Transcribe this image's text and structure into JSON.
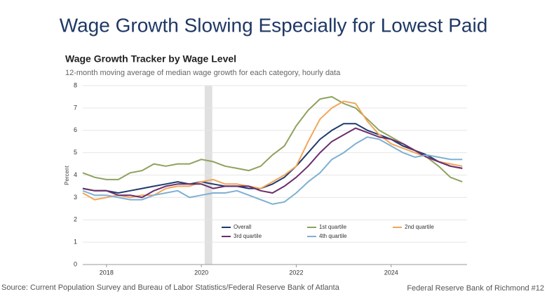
{
  "header": {
    "title": "Wage Growth Slowing Especially for Lowest Paid"
  },
  "chart_data": {
    "type": "line",
    "title": "Wage Growth Tracker by Wage Level",
    "subtitle": "12-month moving average of median wage growth for each category, hourly data",
    "y_label": "Percent",
    "x": [
      2017.5,
      2017.75,
      2018,
      2018.25,
      2018.5,
      2018.75,
      2019,
      2019.25,
      2019.5,
      2019.75,
      2020,
      2020.25,
      2020.5,
      2020.75,
      2021,
      2021.25,
      2021.5,
      2021.75,
      2022,
      2022.25,
      2022.5,
      2022.75,
      2023,
      2023.25,
      2023.5,
      2023.75,
      2024,
      2024.25,
      2024.5,
      2024.75,
      2025,
      2025.25,
      2025.5
    ],
    "series": [
      {
        "name": "Overall",
        "color": "#1f3b6e",
        "values": [
          3.4,
          3.3,
          3.3,
          3.2,
          3.3,
          3.4,
          3.5,
          3.6,
          3.7,
          3.6,
          3.7,
          3.6,
          3.5,
          3.5,
          3.4,
          3.4,
          3.6,
          3.9,
          4.4,
          5.0,
          5.6,
          6.0,
          6.3,
          6.3,
          6.0,
          5.8,
          5.6,
          5.3,
          5.1,
          4.9,
          4.6,
          4.4,
          4.3
        ]
      },
      {
        "name": "1st quartile",
        "color": "#8ea25e",
        "values": [
          4.1,
          3.9,
          3.8,
          3.8,
          4.1,
          4.2,
          4.5,
          4.4,
          4.5,
          4.5,
          4.7,
          4.6,
          4.4,
          4.3,
          4.2,
          4.4,
          4.9,
          5.3,
          6.2,
          6.9,
          7.4,
          7.5,
          7.2,
          7.0,
          6.5,
          6.0,
          5.7,
          5.4,
          5.1,
          4.8,
          4.4,
          3.9,
          3.7
        ]
      },
      {
        "name": "2nd quartile",
        "color": "#f2a65a",
        "values": [
          3.2,
          2.9,
          3.0,
          3.1,
          3.0,
          3.1,
          3.1,
          3.4,
          3.5,
          3.5,
          3.7,
          3.8,
          3.6,
          3.6,
          3.5,
          3.4,
          3.7,
          4.0,
          4.4,
          5.5,
          6.5,
          7.0,
          7.3,
          7.2,
          6.4,
          5.8,
          5.4,
          5.2,
          5.0,
          4.8,
          4.6,
          4.5,
          4.4
        ]
      },
      {
        "name": "3rd quartile",
        "color": "#6b2d6b",
        "values": [
          3.4,
          3.3,
          3.3,
          3.1,
          3.1,
          3.0,
          3.3,
          3.5,
          3.6,
          3.6,
          3.6,
          3.4,
          3.5,
          3.5,
          3.5,
          3.3,
          3.2,
          3.5,
          3.9,
          4.4,
          5.0,
          5.5,
          5.8,
          6.1,
          5.9,
          5.7,
          5.6,
          5.4,
          5.1,
          4.8,
          4.6,
          4.4,
          4.3
        ]
      },
      {
        "name": "4th quartile",
        "color": "#7fb0d2",
        "values": [
          3.3,
          3.1,
          3.1,
          3.0,
          2.9,
          2.9,
          3.1,
          3.2,
          3.3,
          3.0,
          3.1,
          3.2,
          3.2,
          3.3,
          3.1,
          2.9,
          2.7,
          2.8,
          3.2,
          3.7,
          4.1,
          4.7,
          5.0,
          5.4,
          5.7,
          5.6,
          5.3,
          5.0,
          4.8,
          4.9,
          4.8,
          4.7,
          4.7
        ]
      }
    ],
    "xlim": [
      2017.5,
      2025.6
    ],
    "xticks": [
      2018,
      2020,
      2022,
      2024
    ],
    "ylim": [
      0,
      8
    ],
    "yticks": [
      0,
      1,
      2,
      3,
      4,
      5,
      6,
      7,
      8
    ],
    "grid": true,
    "shaded_x": [
      2020.07,
      2020.23
    ],
    "legend": "lower center"
  },
  "footer": {
    "source": "Source: Current Population Survey and Bureau of Labor Statistics/Federal Reserve Bank of Atlanta",
    "page": "Federal Reserve Bank of Richmond #12"
  }
}
